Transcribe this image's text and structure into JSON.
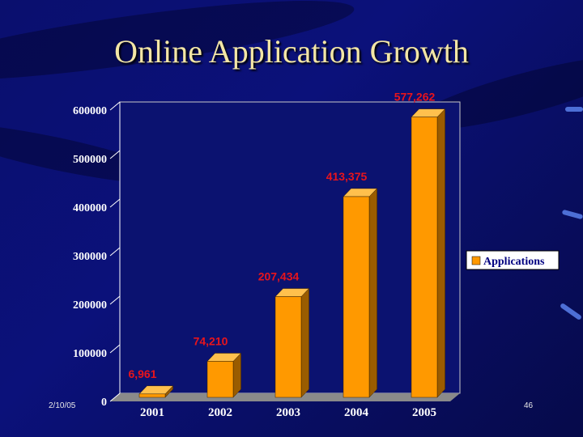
{
  "slide": {
    "title": "Online Application Growth",
    "date": "2/10/05",
    "page_number": "46"
  },
  "colors": {
    "bar_front": "#ff9900",
    "bar_side": "#9a5c00",
    "bar_top": "#ffc04d",
    "label": "#e8141c",
    "plot_bg": "#0b1270",
    "axis": "#ffffff"
  },
  "chart_data": {
    "type": "bar",
    "title": "",
    "xlabel": "",
    "ylabel": "",
    "categories": [
      "2001",
      "2002",
      "2003",
      "2004",
      "2005"
    ],
    "series": [
      {
        "name": "Applications",
        "values": [
          6961,
          74210,
          207434,
          413375,
          577262
        ]
      }
    ],
    "data_labels": [
      "6,961",
      "74,210",
      "207,434",
      "413,375",
      "577,262"
    ],
    "ylim": [
      0,
      600000
    ],
    "yticks": [
      0,
      100000,
      200000,
      300000,
      400000,
      500000,
      600000
    ],
    "ytick_labels": [
      "0",
      "100000",
      "200000",
      "300000",
      "400000",
      "500000",
      "600000"
    ],
    "grid": false,
    "legend": "right",
    "style": "3d"
  }
}
